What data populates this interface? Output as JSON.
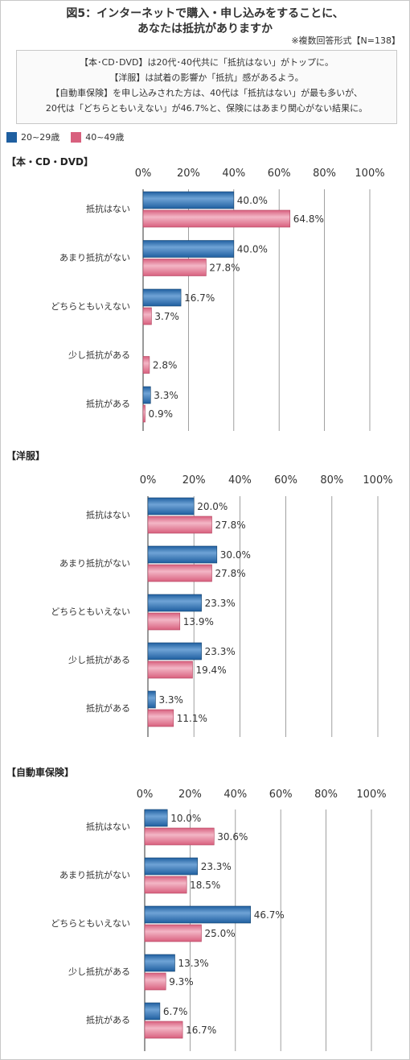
{
  "header": {
    "title_line1": "図5：インターネットで購入・申し込みをすることに、",
    "title_line2": "あなたは抵抗がありますか",
    "note": "※複数回答形式【N=138】"
  },
  "summary": {
    "lines": [
      "【本･CD･DVD】は20代･40代共に「抵抗はない」がトップに。",
      "【洋服】は試着の影響か「抵抗」感があるよう。",
      "【自動車保険】を申し込みされた方は、40代は「抵抗はない」が最も多いが、",
      "20代は「どちらともいえない」が46.7%と、保険にはあまり関心がない結果に。"
    ]
  },
  "legend": [
    {
      "label": "20~29歳",
      "color": "#1f5fa0"
    },
    {
      "label": "40~49歳",
      "color": "#d8607e"
    }
  ],
  "colors": {
    "series1": "#1f5fa0",
    "series1_light": "#6fa3d6",
    "series2": "#d8607e",
    "series2_light": "#f3b6c6",
    "grid": "#888888"
  },
  "chart_data": [
    {
      "type": "bar",
      "title": "【本・CD・DVD】",
      "xticks": [
        "0%",
        "20%",
        "40%",
        "60%",
        "80%",
        "100%"
      ],
      "xlim": [
        0,
        100
      ],
      "categories": [
        "抵抗はない",
        "あまり抵抗がない",
        "どちらともいえない",
        "少し抵抗がある",
        "抵抗がある"
      ],
      "series": [
        {
          "name": "20~29歳",
          "values": [
            40.0,
            40.0,
            16.7,
            0,
            3.3
          ],
          "labels": [
            "40.0%",
            "40.0%",
            "16.7%",
            "",
            "3.3%"
          ]
        },
        {
          "name": "40~49歳",
          "values": [
            64.8,
            27.8,
            3.7,
            2.8,
            0.9
          ],
          "labels": [
            "64.8%",
            "27.8%",
            "3.7%",
            "2.8%",
            "0.9%"
          ]
        }
      ]
    },
    {
      "type": "bar",
      "title": "【洋服】",
      "xticks": [
        "0%",
        "20%",
        "40%",
        "60%",
        "80%",
        "100%"
      ],
      "xlim": [
        0,
        100
      ],
      "categories": [
        "抵抗はない",
        "あまり抵抗がない",
        "どちらともいえない",
        "少し抵抗がある",
        "抵抗がある"
      ],
      "series": [
        {
          "name": "20~29歳",
          "values": [
            20.0,
            30.0,
            23.3,
            23.3,
            3.3
          ],
          "labels": [
            "20.0%",
            "30.0%",
            "23.3%",
            "23.3%",
            "3.3%"
          ]
        },
        {
          "name": "40~49歳",
          "values": [
            27.8,
            27.8,
            13.9,
            19.4,
            11.1
          ],
          "labels": [
            "27.8%",
            "27.8%",
            "13.9%",
            "19.4%",
            "11.1%"
          ]
        }
      ]
    },
    {
      "type": "bar",
      "title": "【自動車保険】",
      "xticks": [
        "0%",
        "20%",
        "40%",
        "60%",
        "80%",
        "100%"
      ],
      "xlim": [
        0,
        100
      ],
      "categories": [
        "抵抗はない",
        "あまり抵抗がない",
        "どちらともいえない",
        "少し抵抗がある",
        "抵抗がある"
      ],
      "series": [
        {
          "name": "20~29歳",
          "values": [
            10.0,
            23.3,
            46.7,
            13.3,
            6.7
          ],
          "labels": [
            "10.0%",
            "23.3%",
            "46.7%",
            "13.3%",
            "6.7%"
          ]
        },
        {
          "name": "40~49歳",
          "values": [
            30.6,
            18.5,
            25.0,
            9.3,
            16.7
          ],
          "labels": [
            "30.6%",
            "18.5%",
            "25.0%",
            "9.3%",
            "16.7%"
          ]
        }
      ]
    }
  ]
}
